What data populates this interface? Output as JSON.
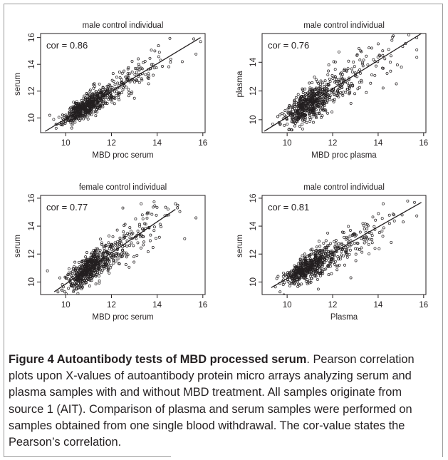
{
  "chart_data": [
    {
      "type": "scatter",
      "title": "male control individual",
      "xlabel": "MBD proc serum",
      "ylabel": "serum",
      "annotation": "cor = 0.86",
      "xlim": [
        8.9,
        16.1
      ],
      "ylim": [
        8.9,
        16.3
      ],
      "xticks": [
        10,
        12,
        14,
        16
      ],
      "yticks": [
        10,
        12,
        14,
        16
      ],
      "fit_line": [
        [
          9.1,
          9.0
        ],
        [
          15.9,
          16.0
        ]
      ],
      "points": {
        "count": 650,
        "cluster_x": 10.8,
        "cluster_y": 10.7,
        "correlation": 0.86,
        "extremes": [
          [
            15.6,
            15.9
          ],
          [
            15.9,
            15.7
          ],
          [
            14.1,
            14.9
          ],
          [
            9.3,
            10.2
          ],
          [
            15.1,
            14.2
          ],
          [
            13.9,
            15.0
          ]
        ]
      }
    },
    {
      "type": "scatter",
      "title": "male control individual",
      "xlabel": "MBD proc plasma",
      "ylabel": "plasma",
      "annotation": "cor = 0.76",
      "xlim": [
        8.9,
        16.1
      ],
      "ylim": [
        9.1,
        16.0
      ],
      "xticks": [
        10,
        12,
        14,
        16
      ],
      "yticks": [
        10,
        12,
        14
      ],
      "fit_line": [
        [
          9.0,
          9.2
        ],
        [
          15.9,
          16.0
        ]
      ],
      "points": {
        "count": 650,
        "cluster_x": 10.8,
        "cluster_y": 10.8,
        "correlation": 0.76,
        "extremes": [
          [
            15.7,
            15.7
          ],
          [
            15.2,
            15.3
          ],
          [
            14.2,
            14.8
          ],
          [
            9.7,
            9.7
          ],
          [
            14.8,
            12.5
          ],
          [
            13.6,
            15.0
          ]
        ]
      }
    },
    {
      "type": "scatter",
      "title": "female control individual",
      "xlabel": "MBD proc serum",
      "ylabel": "serum",
      "annotation": "cor = 0.77",
      "xlim": [
        8.9,
        16.1
      ],
      "ylim": [
        9.1,
        16.2
      ],
      "xticks": [
        10,
        12,
        14,
        16
      ],
      "yticks": [
        10,
        12,
        14,
        16
      ],
      "fit_line": [
        [
          9.5,
          9.3
        ],
        [
          14.8,
          15.2
        ]
      ],
      "points": {
        "count": 650,
        "cluster_x": 10.9,
        "cluster_y": 10.8,
        "correlation": 0.77,
        "extremes": [
          [
            14.9,
            15.5
          ],
          [
            14.8,
            15.6
          ],
          [
            13.3,
            15.6
          ],
          [
            9.2,
            10.8
          ],
          [
            14.1,
            13.2
          ],
          [
            12.5,
            15.3
          ]
        ]
      }
    },
    {
      "type": "scatter",
      "title": "male control individual",
      "xlabel": "Plasma",
      "ylabel": "serum",
      "annotation": "cor = 0.81",
      "xlim": [
        8.9,
        16.1
      ],
      "ylim": [
        9.1,
        16.2
      ],
      "xticks": [
        10,
        12,
        14,
        16
      ],
      "yticks": [
        10,
        12,
        14,
        16
      ],
      "fit_line": [
        [
          9.3,
          9.6
        ],
        [
          15.9,
          15.7
        ]
      ],
      "points": {
        "count": 650,
        "cluster_x": 10.8,
        "cluster_y": 10.7,
        "correlation": 0.81,
        "extremes": [
          [
            15.6,
            15.7
          ],
          [
            15.3,
            15.8
          ],
          [
            14.5,
            14.2
          ],
          [
            9.6,
            10.4
          ],
          [
            12.8,
            10.3
          ],
          [
            15.1,
            14.3
          ]
        ]
      }
    }
  ],
  "caption": {
    "label": "Figure 4 Autoantibody tests of MBD processed serum",
    "text": ". Pearson correlation plots upon X-values of autoantibody protein micro arrays analyzing serum and plasma samples with and without MBD treatment. All samples originate from source 1 (AIT). Comparison of plasma and serum samples were performed on samples obtained from one single blood withdrawal. The cor-value states the Pearson’s correlation."
  },
  "colors": {
    "ink": "#231f20",
    "frame": "#9a9a9a"
  }
}
